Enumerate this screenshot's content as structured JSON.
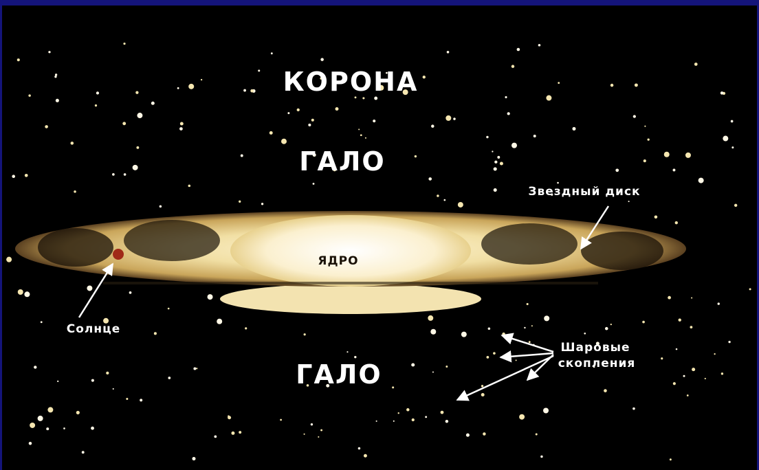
{
  "labels": {
    "corona": "КОРОНА",
    "halo_top": "ГАЛО",
    "star_disk": "Звездный диск",
    "core": "ЯДРО",
    "sun": "Солнце",
    "halo_bottom": "ГАЛО",
    "globular_clusters": [
      "Шаровые",
      "скопления"
    ]
  }
}
